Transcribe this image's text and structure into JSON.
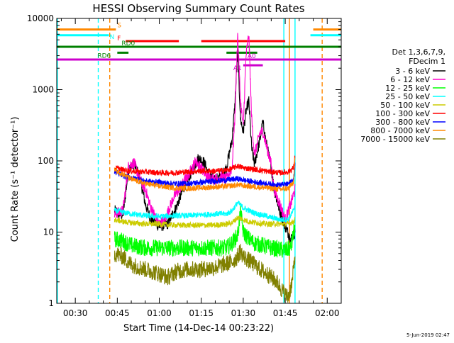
{
  "chart_data": {
    "type": "line",
    "title": "HESSI Observing Summary Count Rates",
    "xlabel": "Start Time (14-Dec-14 00:23:22)",
    "ylabel": "Count Rate (s⁻¹ detector⁻¹)",
    "y_scale": "log",
    "ylim": [
      1,
      10000
    ],
    "xlim_minutes": [
      23.37,
      125.0
    ],
    "x_ticks": [
      {
        "label": "00:30",
        "t": 30
      },
      {
        "label": "00:45",
        "t": 45
      },
      {
        "label": "01:00",
        "t": 60
      },
      {
        "label": "01:15",
        "t": 75
      },
      {
        "label": "01:30",
        "t": 90
      },
      {
        "label": "01:45",
        "t": 105
      },
      {
        "label": "02:00",
        "t": 120
      }
    ],
    "y_ticks": [
      {
        "label": "1",
        "v": 1
      },
      {
        "label": "10",
        "v": 10
      },
      {
        "label": "100",
        "v": 100
      },
      {
        "label": "1000",
        "v": 1000
      },
      {
        "label": "10000",
        "v": 10000
      }
    ],
    "legend_header": [
      "Det 1,3,6,7,9,",
      "FDecim 1"
    ],
    "series": [
      {
        "name": "3 - 6 keV",
        "color": "#000000",
        "points": [
          [
            44,
            20
          ],
          [
            47,
            17
          ],
          [
            49,
            75
          ],
          [
            51,
            90
          ],
          [
            53,
            60
          ],
          [
            55,
            25
          ],
          [
            57,
            15
          ],
          [
            60,
            12
          ],
          [
            63,
            13
          ],
          [
            66,
            22
          ],
          [
            69,
            45
          ],
          [
            72,
            75
          ],
          [
            74,
            110
          ],
          [
            76,
            95
          ],
          [
            78,
            60
          ],
          [
            80,
            55
          ],
          [
            82,
            60
          ],
          [
            84,
            80
          ],
          [
            86,
            200
          ],
          [
            87,
            600
          ],
          [
            88,
            3500
          ],
          [
            89,
            400
          ],
          [
            90,
            250
          ],
          [
            91,
            500
          ],
          [
            92,
            700
          ],
          [
            93,
            150
          ],
          [
            94,
            90
          ],
          [
            96,
            200
          ],
          [
            97,
            350
          ],
          [
            98,
            200
          ],
          [
            100,
            80
          ],
          [
            101,
            40
          ],
          [
            103,
            20
          ],
          [
            105,
            12
          ],
          [
            107,
            8
          ],
          [
            108.5,
            10
          ]
        ]
      },
      {
        "name": "6 - 12 keV",
        "color": "#ff00cc",
        "points": [
          [
            44,
            18
          ],
          [
            47,
            20
          ],
          [
            49,
            85
          ],
          [
            51,
            95
          ],
          [
            53,
            55
          ],
          [
            55,
            40
          ],
          [
            57,
            22
          ],
          [
            60,
            13
          ],
          [
            62,
            15
          ],
          [
            65,
            30
          ],
          [
            68,
            45
          ],
          [
            71,
            70
          ],
          [
            73,
            100
          ],
          [
            75,
            80
          ],
          [
            77,
            60
          ],
          [
            80,
            55
          ],
          [
            82,
            60
          ],
          [
            84,
            55
          ],
          [
            86,
            80
          ],
          [
            87,
            400
          ],
          [
            88,
            6000
          ],
          [
            89,
            700
          ],
          [
            90,
            300
          ],
          [
            91,
            3000
          ],
          [
            92,
            6000
          ],
          [
            93,
            400
          ],
          [
            94,
            120
          ],
          [
            96,
            250
          ],
          [
            97,
            260
          ],
          [
            98,
            180
          ],
          [
            100,
            90
          ],
          [
            101,
            40
          ],
          [
            103,
            25
          ],
          [
            105,
            15
          ],
          [
            107,
            25
          ],
          [
            108.5,
            40
          ]
        ]
      },
      {
        "name": "12 - 25 keV",
        "color": "#00ff00",
        "points": [
          [
            44,
            8
          ],
          [
            47,
            7.5
          ],
          [
            50,
            6.5
          ],
          [
            55,
            6
          ],
          [
            60,
            6
          ],
          [
            65,
            6
          ],
          [
            70,
            6
          ],
          [
            75,
            6
          ],
          [
            80,
            6
          ],
          [
            84,
            6
          ],
          [
            86,
            7
          ],
          [
            88,
            9
          ],
          [
            89,
            20
          ],
          [
            90,
            10
          ],
          [
            92,
            8
          ],
          [
            94,
            7
          ],
          [
            97,
            6.5
          ],
          [
            100,
            6
          ],
          [
            105,
            5.5
          ],
          [
            107,
            6
          ],
          [
            108.5,
            12
          ]
        ]
      },
      {
        "name": "25 - 50 keV",
        "color": "#00ffff",
        "points": [
          [
            44,
            20
          ],
          [
            47,
            19
          ],
          [
            50,
            18
          ],
          [
            55,
            17
          ],
          [
            60,
            16.5
          ],
          [
            65,
            17
          ],
          [
            70,
            17
          ],
          [
            75,
            17.5
          ],
          [
            80,
            18
          ],
          [
            84,
            18
          ],
          [
            86,
            20
          ],
          [
            88,
            26
          ],
          [
            90,
            22
          ],
          [
            92,
            20
          ],
          [
            95,
            18
          ],
          [
            98,
            17
          ],
          [
            100,
            16
          ],
          [
            103,
            15
          ],
          [
            106,
            15
          ],
          [
            108,
            20
          ],
          [
            108.5,
            25
          ]
        ]
      },
      {
        "name": "50 - 100 keV",
        "color": "#cccc00",
        "points": [
          [
            44,
            15
          ],
          [
            47,
            14
          ],
          [
            50,
            13.5
          ],
          [
            55,
            13
          ],
          [
            60,
            13
          ],
          [
            65,
            12.5
          ],
          [
            70,
            12.5
          ],
          [
            75,
            12.5
          ],
          [
            80,
            12.5
          ],
          [
            84,
            13
          ],
          [
            86,
            13.5
          ],
          [
            88,
            16
          ],
          [
            90,
            15
          ],
          [
            92,
            14
          ],
          [
            95,
            13.5
          ],
          [
            98,
            13
          ],
          [
            100,
            13
          ],
          [
            104,
            13
          ],
          [
            106,
            13
          ],
          [
            108,
            14
          ],
          [
            108.5,
            15
          ]
        ]
      },
      {
        "name": "100 - 300 keV",
        "color": "#ff0000",
        "points": [
          [
            44,
            80
          ],
          [
            47,
            75
          ],
          [
            50,
            72
          ],
          [
            55,
            70
          ],
          [
            60,
            68
          ],
          [
            65,
            68
          ],
          [
            70,
            70
          ],
          [
            75,
            72
          ],
          [
            80,
            72
          ],
          [
            84,
            74
          ],
          [
            86,
            78
          ],
          [
            88,
            85
          ],
          [
            90,
            80
          ],
          [
            92,
            78
          ],
          [
            95,
            75
          ],
          [
            98,
            72
          ],
          [
            100,
            70
          ],
          [
            103,
            68
          ],
          [
            106,
            70
          ],
          [
            108,
            80
          ],
          [
            108.5,
            120
          ]
        ]
      },
      {
        "name": "300 - 800 keV",
        "color": "#0000ff",
        "points": [
          [
            44,
            70
          ],
          [
            47,
            62
          ],
          [
            50,
            58
          ],
          [
            55,
            52
          ],
          [
            60,
            50
          ],
          [
            65,
            48
          ],
          [
            70,
            48
          ],
          [
            75,
            50
          ],
          [
            80,
            52
          ],
          [
            84,
            54
          ],
          [
            86,
            55
          ],
          [
            88,
            56
          ],
          [
            90,
            54
          ],
          [
            92,
            52
          ],
          [
            95,
            50
          ],
          [
            98,
            48
          ],
          [
            100,
            47
          ],
          [
            103,
            46
          ],
          [
            106,
            47
          ],
          [
            108,
            55
          ],
          [
            108.5,
            90
          ]
        ]
      },
      {
        "name": "800 - 7000 keV",
        "color": "#ff8800",
        "points": [
          [
            44,
            75
          ],
          [
            47,
            65
          ],
          [
            50,
            55
          ],
          [
            55,
            48
          ],
          [
            60,
            44
          ],
          [
            65,
            42
          ],
          [
            70,
            41
          ],
          [
            75,
            42
          ],
          [
            80,
            43
          ],
          [
            84,
            44
          ],
          [
            86,
            45
          ],
          [
            88,
            46
          ],
          [
            90,
            45
          ],
          [
            92,
            44
          ],
          [
            95,
            43
          ],
          [
            98,
            42
          ],
          [
            100,
            41
          ],
          [
            103,
            40
          ],
          [
            106,
            41
          ],
          [
            108,
            50
          ],
          [
            108.5,
            110
          ]
        ]
      },
      {
        "name": "7000 - 15000 keV",
        "color": "#808000",
        "points": [
          [
            44,
            5
          ],
          [
            47,
            4.5
          ],
          [
            50,
            3.5
          ],
          [
            55,
            3
          ],
          [
            60,
            2.6
          ],
          [
            63,
            2.3
          ],
          [
            66,
            2.8
          ],
          [
            70,
            3
          ],
          [
            75,
            3
          ],
          [
            80,
            3.2
          ],
          [
            84,
            3.6
          ],
          [
            86,
            3.8
          ],
          [
            88,
            4.5
          ],
          [
            89,
            5.5
          ],
          [
            90,
            4.5
          ],
          [
            92,
            4
          ],
          [
            94,
            3.5
          ],
          [
            96,
            3
          ],
          [
            99,
            2.5
          ],
          [
            102,
            2
          ],
          [
            104,
            1.5
          ],
          [
            106,
            1.2
          ],
          [
            107.5,
            2
          ],
          [
            108.5,
            5
          ]
        ]
      }
    ],
    "flag_bars": [
      {
        "label": "S",
        "color": "#ff8800",
        "y": 7000,
        "segments": [
          [
            23.37,
            44.5
          ],
          [
            115,
            125
          ]
        ]
      },
      {
        "name": "N-flag",
        "label": "N",
        "color": "#00ffff",
        "y": 5800,
        "segments": [
          [
            23.37,
            42
          ],
          [
            114,
            125
          ]
        ]
      },
      {
        "label": "F",
        "color": "#ff0000",
        "y": 4800,
        "segments": [
          [
            48,
            67
          ],
          [
            75,
            105
          ]
        ]
      },
      {
        "label": "RD0",
        "color": "#008000",
        "y": 4000,
        "segments": [
          [
            23.37,
            125
          ]
        ]
      },
      {
        "label": "RD6",
        "color": "#008000",
        "y": 3300,
        "segments": [
          [
            45,
            49
          ],
          [
            84,
            95
          ]
        ]
      },
      {
        "label": "A0",
        "color": "#cc00cc",
        "y": 2650,
        "segments": [
          [
            23.37,
            125
          ]
        ]
      },
      {
        "label": "A1",
        "color": "#cc00cc",
        "y": 2200,
        "segments": [
          [
            90,
            97
          ]
        ]
      }
    ],
    "vertical_markers": [
      {
        "t": 23.6,
        "color": "#00ffff",
        "style": "solid"
      },
      {
        "t": 38.2,
        "color": "#00ffff",
        "style": "dashed"
      },
      {
        "t": 42.3,
        "color": "#ff8800",
        "style": "dashed"
      },
      {
        "t": 104.5,
        "color": "#00ffff",
        "style": "solid"
      },
      {
        "t": 108.5,
        "color": "#00ffff",
        "style": "solid"
      },
      {
        "t": 106.5,
        "color": "#ff8800",
        "style": "solid"
      },
      {
        "t": 118.2,
        "color": "#ff8800",
        "style": "dashed"
      }
    ],
    "footer_timestamp": "5-Jun-2019 02:47"
  }
}
